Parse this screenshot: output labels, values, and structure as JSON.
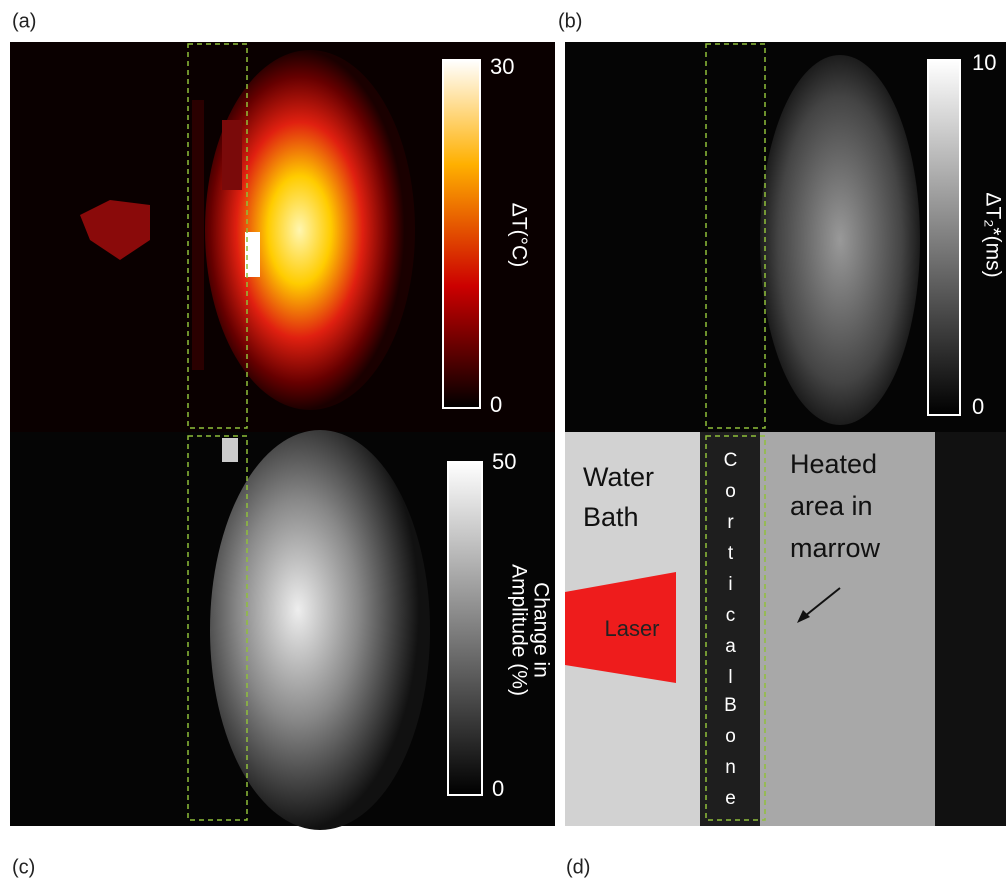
{
  "panels": [
    {
      "label": "(a)",
      "colorbar": {
        "label": "ΔT(°C)",
        "ticks": [
          "30",
          "0"
        ]
      }
    },
    {
      "label": "(b)",
      "colorbar": {
        "label": "ΔT₂*(ms)",
        "ticks": [
          "10",
          "0"
        ]
      }
    },
    {
      "label": "(c)",
      "colorbar": {
        "label": [
          "Change in",
          "Amplitude (%)"
        ],
        "ticks": [
          "50",
          "0"
        ]
      }
    },
    {
      "label": "(d)",
      "annotations": {
        "water": [
          "Water",
          "Bath"
        ],
        "bone": [
          "Cortical",
          "Bone"
        ],
        "heated": [
          "Heated",
          "area in",
          "marrow"
        ],
        "laser": "Laser"
      }
    }
  ]
}
